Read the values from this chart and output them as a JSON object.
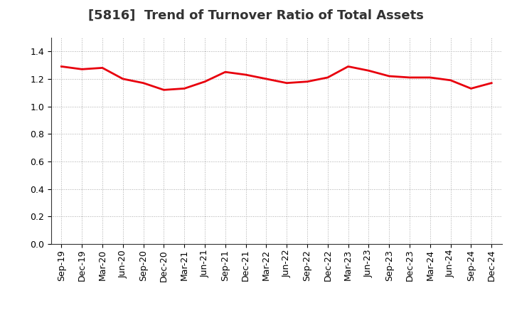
{
  "title": "[5816]  Trend of Turnover Ratio of Total Assets",
  "x_labels": [
    "Sep-19",
    "Dec-19",
    "Mar-20",
    "Jun-20",
    "Sep-20",
    "Dec-20",
    "Mar-21",
    "Jun-21",
    "Sep-21",
    "Dec-21",
    "Mar-22",
    "Jun-22",
    "Sep-22",
    "Dec-22",
    "Mar-23",
    "Jun-23",
    "Sep-23",
    "Dec-23",
    "Mar-24",
    "Jun-24",
    "Sep-24",
    "Dec-24"
  ],
  "y_values": [
    1.29,
    1.27,
    1.28,
    1.2,
    1.17,
    1.12,
    1.13,
    1.18,
    1.25,
    1.23,
    1.2,
    1.17,
    1.18,
    1.21,
    1.29,
    1.26,
    1.22,
    1.21,
    1.21,
    1.19,
    1.13,
    1.17
  ],
  "line_color": "#e8000d",
  "line_width": 2.0,
  "ylim": [
    0.0,
    1.5
  ],
  "yticks": [
    0.0,
    0.2,
    0.4,
    0.6,
    0.8,
    1.0,
    1.2,
    1.4
  ],
  "background_color": "#ffffff",
  "grid_color": "#aaaaaa",
  "title_fontsize": 13,
  "tick_fontsize": 9
}
